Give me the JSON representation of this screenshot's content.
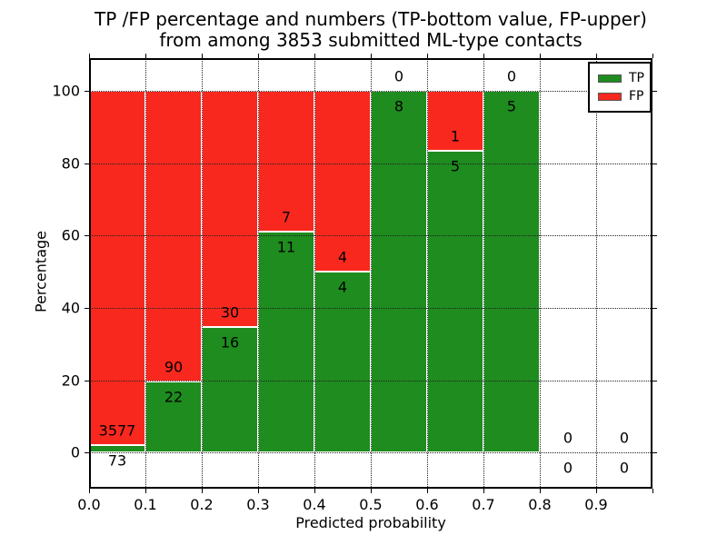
{
  "chart_data": {
    "type": "bar",
    "stacked": true,
    "title_line1": "TP /FP percentage and numbers (TP-bottom value, FP-upper)",
    "title_line2": "from among 3853 submitted ML-type contacts",
    "total_contacts": 3853,
    "xlabel": "Predicted probability",
    "ylabel": "Percentage",
    "xlim": [
      0.0,
      1.0
    ],
    "ylim": [
      -10,
      109
    ],
    "x_ticks": [
      "0.0",
      "0.1",
      "0.2",
      "0.3",
      "0.4",
      "0.5",
      "0.6",
      "0.7",
      "0.8",
      "0.9"
    ],
    "y_ticks": [
      "0",
      "20",
      "40",
      "60",
      "80",
      "100"
    ],
    "grid": "dotted",
    "colors": {
      "tp": "#1e8c1e",
      "fp": "#f8281e",
      "bar_edge": "#ffffff"
    },
    "legend": {
      "position": "upper-right",
      "items": [
        {
          "label": "TP",
          "color": "#1e8c1e"
        },
        {
          "label": "FP",
          "color": "#f8281e"
        }
      ]
    },
    "bins": [
      {
        "range": "0.0-0.1",
        "tp": 73,
        "fp": 3577,
        "tp_pct": 2.0
      },
      {
        "range": "0.1-0.2",
        "tp": 22,
        "fp": 90,
        "tp_pct": 19.64
      },
      {
        "range": "0.2-0.3",
        "tp": 16,
        "fp": 30,
        "tp_pct": 34.78
      },
      {
        "range": "0.3-0.4",
        "tp": 11,
        "fp": 7,
        "tp_pct": 61.11
      },
      {
        "range": "0.4-0.5",
        "tp": 4,
        "fp": 4,
        "tp_pct": 50.0
      },
      {
        "range": "0.5-0.6",
        "tp": 8,
        "fp": 0,
        "tp_pct": 100.0
      },
      {
        "range": "0.6-0.7",
        "tp": 5,
        "fp": 1,
        "tp_pct": 83.33
      },
      {
        "range": "0.7-0.8",
        "tp": 5,
        "fp": 0,
        "tp_pct": 100.0
      },
      {
        "range": "0.8-0.9",
        "tp": 0,
        "fp": 0,
        "tp_pct": 0
      },
      {
        "range": "0.9-1.0",
        "tp": 0,
        "fp": 0,
        "tp_pct": 0
      }
    ]
  }
}
